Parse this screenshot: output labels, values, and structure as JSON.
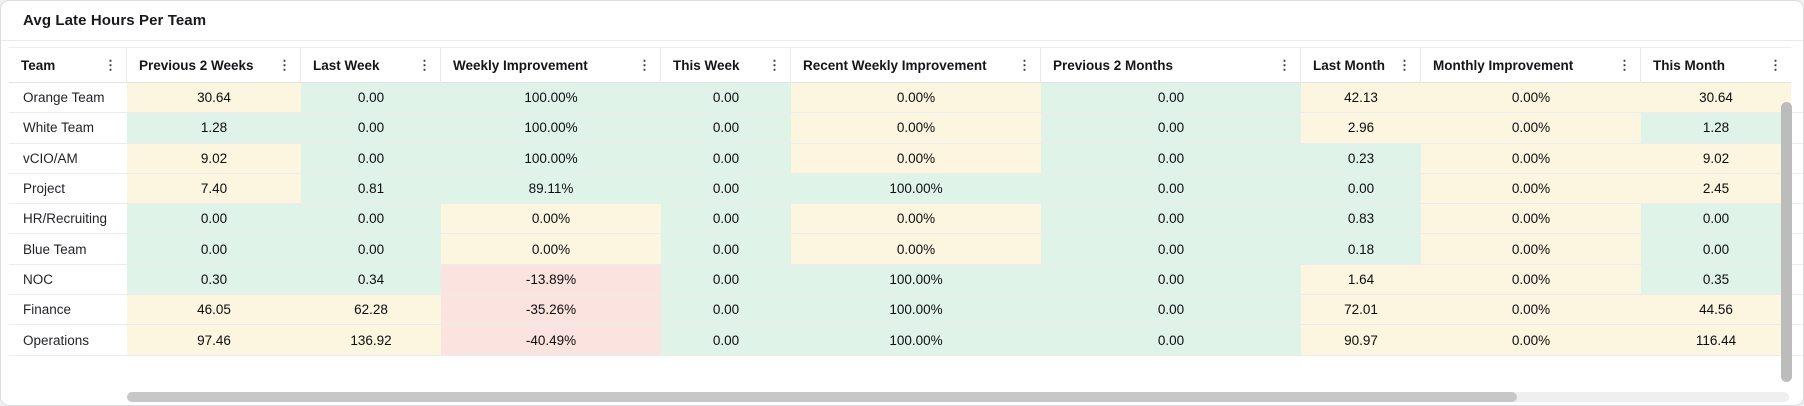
{
  "panel": {
    "title": "Avg Late Hours Per Team"
  },
  "icons": {
    "column_menu": "⋮"
  },
  "colors": {
    "positive_cell": "#e0f3e9",
    "warning_cell": "#fcf5e0",
    "negative_cell": "#fbe3df",
    "card_bg": "#ffffff",
    "page_bg": "#eef0f1",
    "scrollbar_thumb": "#bcbcbc"
  },
  "table": {
    "columns": [
      "Team",
      "Previous 2 Weeks",
      "Last Week",
      "Weekly Improvement",
      "This Week",
      "Recent Weekly Improvement",
      "Previous 2 Months",
      "Last Month",
      "Monthly Improvement",
      "This Month"
    ],
    "rows": [
      {
        "team": "Orange Team",
        "values": [
          "30.64",
          "0.00",
          "100.00%",
          "0.00",
          "0.00%",
          "0.00",
          "42.13",
          "0.00%",
          "30.64"
        ],
        "tones": [
          "w",
          "g",
          "g",
          "g",
          "w",
          "g",
          "w",
          "w",
          "w"
        ]
      },
      {
        "team": "White Team",
        "values": [
          "1.28",
          "0.00",
          "100.00%",
          "0.00",
          "0.00%",
          "0.00",
          "2.96",
          "0.00%",
          "1.28"
        ],
        "tones": [
          "g",
          "g",
          "g",
          "g",
          "w",
          "g",
          "w",
          "w",
          "g"
        ]
      },
      {
        "team": "vCIO/AM",
        "values": [
          "9.02",
          "0.00",
          "100.00%",
          "0.00",
          "0.00%",
          "0.00",
          "0.23",
          "0.00%",
          "9.02"
        ],
        "tones": [
          "w",
          "g",
          "g",
          "g",
          "w",
          "g",
          "g",
          "w",
          "w"
        ]
      },
      {
        "team": "Project",
        "values": [
          "7.40",
          "0.81",
          "89.11%",
          "0.00",
          "100.00%",
          "0.00",
          "0.00",
          "0.00%",
          "2.45"
        ],
        "tones": [
          "w",
          "g",
          "g",
          "g",
          "g",
          "g",
          "g",
          "w",
          "w"
        ]
      },
      {
        "team": "HR/Recruiting",
        "values": [
          "0.00",
          "0.00",
          "0.00%",
          "0.00",
          "0.00%",
          "0.00",
          "0.83",
          "0.00%",
          "0.00"
        ],
        "tones": [
          "g",
          "g",
          "w",
          "g",
          "w",
          "g",
          "g",
          "w",
          "g"
        ]
      },
      {
        "team": "Blue Team",
        "values": [
          "0.00",
          "0.00",
          "0.00%",
          "0.00",
          "0.00%",
          "0.00",
          "0.18",
          "0.00%",
          "0.00"
        ],
        "tones": [
          "g",
          "g",
          "w",
          "g",
          "w",
          "g",
          "g",
          "w",
          "g"
        ]
      },
      {
        "team": "NOC",
        "values": [
          "0.30",
          "0.34",
          "-13.89%",
          "0.00",
          "100.00%",
          "0.00",
          "1.64",
          "0.00%",
          "0.35"
        ],
        "tones": [
          "g",
          "g",
          "r",
          "g",
          "g",
          "g",
          "w",
          "w",
          "g"
        ]
      },
      {
        "team": "Finance",
        "values": [
          "46.05",
          "62.28",
          "-35.26%",
          "0.00",
          "100.00%",
          "0.00",
          "72.01",
          "0.00%",
          "44.56"
        ],
        "tones": [
          "w",
          "w",
          "r",
          "g",
          "g",
          "g",
          "w",
          "w",
          "w"
        ]
      },
      {
        "team": "Operations",
        "values": [
          "97.46",
          "136.92",
          "-40.49%",
          "0.00",
          "100.00%",
          "0.00",
          "90.97",
          "0.00%",
          "116.44"
        ],
        "tones": [
          "w",
          "w",
          "r",
          "g",
          "g",
          "g",
          "w",
          "w",
          "w"
        ]
      }
    ]
  }
}
